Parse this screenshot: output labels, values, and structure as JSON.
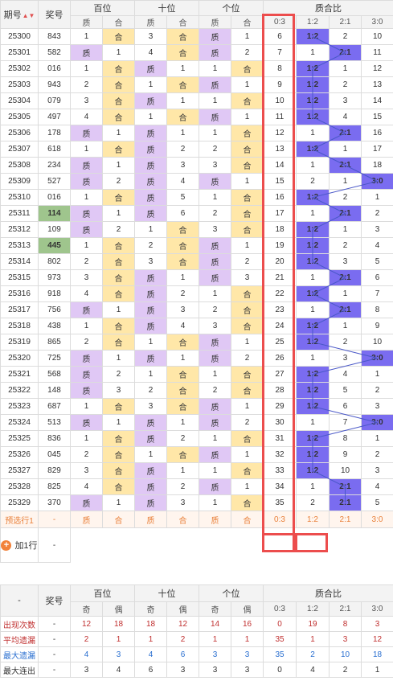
{
  "header": {
    "period": "期号",
    "award": "奖号",
    "groups": [
      "百位",
      "十位",
      "个位",
      "质合比"
    ],
    "sub": [
      "质",
      "合",
      "质",
      "合",
      "质",
      "合",
      "0:3",
      "1:2",
      "2:1",
      "3:0"
    ]
  },
  "rows": [
    {
      "p": "25300",
      "a": "843",
      "h": [
        1,
        "合"
      ],
      "t": [
        3,
        "合"
      ],
      "u": [
        "质",
        1
      ],
      "r": [
        6,
        "1:2",
        2,
        10
      ],
      "hit": 1
    },
    {
      "p": "25301",
      "a": "582",
      "h": [
        "质",
        1
      ],
      "t": [
        4,
        "合"
      ],
      "u": [
        "质",
        2
      ],
      "r": [
        7,
        1,
        "2:1",
        11
      ],
      "hit": 2
    },
    {
      "p": "25302",
      "a": "016",
      "h": [
        1,
        "合"
      ],
      "t": [
        "质",
        1
      ],
      "u": [
        1,
        "合"
      ],
      "r": [
        8,
        "1:2",
        1,
        12
      ],
      "hit": 1
    },
    {
      "p": "25303",
      "a": "943",
      "h": [
        2,
        "合"
      ],
      "t": [
        1,
        "合"
      ],
      "u": [
        "质",
        1
      ],
      "r": [
        9,
        "1:2",
        2,
        13
      ],
      "hit": 1
    },
    {
      "p": "25304",
      "a": "079",
      "h": [
        3,
        "合"
      ],
      "t": [
        "质",
        1
      ],
      "u": [
        1,
        "合"
      ],
      "r": [
        10,
        "1:2",
        3,
        14
      ],
      "hit": 1
    },
    {
      "p": "25305",
      "a": "497",
      "h": [
        4,
        "合"
      ],
      "t": [
        1,
        "合"
      ],
      "u": [
        "质",
        1
      ],
      "r": [
        11,
        "1:2",
        4,
        15
      ],
      "hit": 1
    },
    {
      "p": "25306",
      "a": "178",
      "h": [
        "质",
        1
      ],
      "t": [
        "质",
        1
      ],
      "u": [
        1,
        "合"
      ],
      "r": [
        12,
        1,
        "2:1",
        16
      ],
      "hit": 2
    },
    {
      "p": "25307",
      "a": "618",
      "h": [
        1,
        "合"
      ],
      "t": [
        "质",
        2
      ],
      "u": [
        2,
        "合"
      ],
      "r": [
        13,
        "1:2",
        1,
        17
      ],
      "hit": 1
    },
    {
      "p": "25308",
      "a": "234",
      "h": [
        "质",
        1
      ],
      "t": [
        "质",
        3
      ],
      "u": [
        3,
        "合"
      ],
      "r": [
        14,
        1,
        "2:1",
        18
      ],
      "hit": 2
    },
    {
      "p": "25309",
      "a": "527",
      "h": [
        "质",
        2
      ],
      "t": [
        "质",
        4
      ],
      "u": [
        "质",
        1
      ],
      "r": [
        15,
        2,
        1,
        "3:0"
      ],
      "hit": 3
    },
    {
      "p": "25310",
      "a": "016",
      "h": [
        1,
        "合"
      ],
      "t": [
        "质",
        5
      ],
      "u": [
        1,
        "合"
      ],
      "r": [
        16,
        "1:2",
        2,
        1
      ],
      "hit": 1
    },
    {
      "p": "25311",
      "a": "114",
      "h": [
        "质",
        1
      ],
      "t": [
        "质",
        6
      ],
      "u": [
        2,
        "合"
      ],
      "r": [
        17,
        1,
        "2:1",
        2
      ],
      "hit": 2,
      "hi": true
    },
    {
      "p": "25312",
      "a": "109",
      "h": [
        "质",
        2
      ],
      "t": [
        1,
        "合"
      ],
      "u": [
        3,
        "合"
      ],
      "r": [
        18,
        "1:2",
        1,
        3
      ],
      "hit": 1
    },
    {
      "p": "25313",
      "a": "445",
      "h": [
        1,
        "合"
      ],
      "t": [
        2,
        "合"
      ],
      "u": [
        "质",
        1
      ],
      "r": [
        19,
        "1:2",
        2,
        4
      ],
      "hit": 1,
      "hi": true
    },
    {
      "p": "25314",
      "a": "802",
      "h": [
        2,
        "合"
      ],
      "t": [
        3,
        "合"
      ],
      "u": [
        "质",
        2
      ],
      "r": [
        20,
        "1:2",
        3,
        5
      ],
      "hit": 1
    },
    {
      "p": "25315",
      "a": "973",
      "h": [
        3,
        "合"
      ],
      "t": [
        "质",
        1
      ],
      "u": [
        "质",
        3
      ],
      "r": [
        21,
        1,
        "2:1",
        6
      ],
      "hit": 2
    },
    {
      "p": "25316",
      "a": "918",
      "h": [
        4,
        "合"
      ],
      "t": [
        "质",
        2
      ],
      "u": [
        1,
        "合"
      ],
      "r": [
        22,
        "1:2",
        1,
        7
      ],
      "hit": 1
    },
    {
      "p": "25317",
      "a": "756",
      "h": [
        "质",
        1
      ],
      "t": [
        "质",
        3
      ],
      "u": [
        2,
        "合"
      ],
      "r": [
        23,
        1,
        "2:1",
        8
      ],
      "hit": 2
    },
    {
      "p": "25318",
      "a": "438",
      "h": [
        1,
        "合"
      ],
      "t": [
        "质",
        4
      ],
      "u": [
        3,
        "合"
      ],
      "r": [
        24,
        "1:2",
        1,
        9
      ],
      "hit": 1
    },
    {
      "p": "25319",
      "a": "865",
      "h": [
        2,
        "合"
      ],
      "t": [
        1,
        "合"
      ],
      "u": [
        "质",
        1
      ],
      "r": [
        25,
        "1:2",
        2,
        10
      ],
      "hit": 1
    },
    {
      "p": "25320",
      "a": "725",
      "h": [
        "质",
        1
      ],
      "t": [
        "质",
        1
      ],
      "u": [
        "质",
        2
      ],
      "r": [
        26,
        1,
        3,
        "3:0"
      ],
      "hit": 3
    },
    {
      "p": "25321",
      "a": "568",
      "h": [
        "质",
        2
      ],
      "t": [
        1,
        "合"
      ],
      "u": [
        1,
        "合"
      ],
      "r": [
        27,
        "1:2",
        4,
        1
      ],
      "hit": 1
    },
    {
      "p": "25322",
      "a": "148",
      "h": [
        "质",
        3
      ],
      "t": [
        2,
        "合"
      ],
      "u": [
        2,
        "合"
      ],
      "r": [
        28,
        "1:2",
        5,
        2
      ],
      "hit": 1
    },
    {
      "p": "25323",
      "a": "687",
      "h": [
        1,
        "合"
      ],
      "t": [
        3,
        "合"
      ],
      "u": [
        "质",
        1
      ],
      "r": [
        29,
        "1:2",
        6,
        3
      ],
      "hit": 1
    },
    {
      "p": "25324",
      "a": "513",
      "h": [
        "质",
        1
      ],
      "t": [
        "质",
        1
      ],
      "u": [
        "质",
        2
      ],
      "r": [
        30,
        1,
        7,
        "3:0"
      ],
      "hit": 3
    },
    {
      "p": "25325",
      "a": "836",
      "h": [
        1,
        "合"
      ],
      "t": [
        "质",
        2
      ],
      "u": [
        1,
        "合"
      ],
      "r": [
        31,
        "1:2",
        8,
        1
      ],
      "hit": 1
    },
    {
      "p": "25326",
      "a": "045",
      "h": [
        2,
        "合"
      ],
      "t": [
        1,
        "合"
      ],
      "u": [
        "质",
        1
      ],
      "r": [
        32,
        "1:2",
        9,
        2
      ],
      "hit": 1
    },
    {
      "p": "25327",
      "a": "829",
      "h": [
        3,
        "合"
      ],
      "t": [
        "质",
        1
      ],
      "u": [
        1,
        "合"
      ],
      "r": [
        33,
        "1:2",
        10,
        3
      ],
      "hit": 1
    },
    {
      "p": "25328",
      "a": "825",
      "h": [
        4,
        "合"
      ],
      "t": [
        "质",
        2
      ],
      "u": [
        "质",
        1
      ],
      "r": [
        34,
        1,
        "2:1",
        4
      ],
      "hit": 2
    },
    {
      "p": "25329",
      "a": "370",
      "h": [
        "质",
        1
      ],
      "t": [
        "质",
        3
      ],
      "u": [
        1,
        "合"
      ],
      "r": [
        35,
        2,
        "2:1",
        5
      ],
      "hit": 2
    }
  ],
  "preselect": {
    "label": "预选行1",
    "award": "-",
    "cells": [
      "质",
      "合",
      "质",
      "合",
      "质",
      "合",
      "0:3",
      "1:2",
      "2:1",
      "3:0"
    ]
  },
  "add_row": {
    "label": "加1行",
    "award": "-"
  },
  "summary": {
    "head_dash": "-",
    "head_award": "奖号",
    "groups": [
      "百位",
      "十位",
      "个位",
      "质合比"
    ],
    "sub": [
      "奇",
      "偶",
      "奇",
      "偶",
      "奇",
      "偶",
      "0:3",
      "1:2",
      "2:1",
      "3:0"
    ],
    "rows": [
      {
        "label": "出现次数",
        "dash": "-",
        "vals": [
          12,
          18,
          18,
          12,
          14,
          16,
          0,
          19,
          8,
          3
        ],
        "cls": "occ"
      },
      {
        "label": "平均遗漏",
        "dash": "-",
        "vals": [
          2,
          1,
          1,
          2,
          1,
          1,
          35,
          1,
          3,
          12
        ],
        "cls": "avg"
      },
      {
        "label": "最大遗漏",
        "dash": "-",
        "vals": [
          4,
          3,
          4,
          6,
          3,
          3,
          35,
          2,
          10,
          18
        ],
        "cls": "max"
      },
      {
        "label": "最大连出",
        "dash": "-",
        "vals": [
          3,
          4,
          6,
          3,
          3,
          3,
          0,
          4,
          2,
          1
        ],
        "cls": "con"
      }
    ]
  },
  "colors": {
    "zhi": "#e0c8f5",
    "he": "#ffe7a8",
    "hit": "#7a6cf0",
    "highlight": "#ec4d4d"
  }
}
